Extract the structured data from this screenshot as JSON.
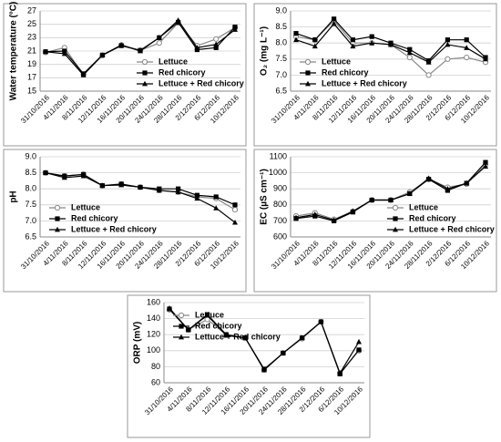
{
  "chart_data": [
    {
      "type": "line",
      "y_label": "Water temperature (°C)",
      "legend": "lower right",
      "categories": [
        "31/10/2016",
        "4/11/2016",
        "8/11/2016",
        "12/11/2016",
        "16/11/2016",
        "20/11/2016",
        "24/11/2016",
        "28/11/2016",
        "2/12/2016",
        "6/12/2016",
        "10/12/2016"
      ],
      "ylim": [
        15,
        27
      ],
      "yticks": [
        15,
        17,
        19,
        21,
        23,
        25,
        27
      ],
      "series": [
        {
          "name": "Lettuce",
          "color": "#888888",
          "marker": "circle",
          "values": [
            20.8,
            21.5,
            17.5,
            20.3,
            21.9,
            21.1,
            22.2,
            25.2,
            21.8,
            22.8,
            24.5
          ]
        },
        {
          "name": "Red chicory",
          "color": "#000000",
          "marker": "square",
          "values": [
            20.9,
            21.0,
            17.6,
            20.4,
            21.8,
            21.1,
            23.0,
            25.3,
            21.2,
            21.5,
            24.6
          ]
        },
        {
          "name": "Lettuce + Red chicory",
          "color": "#000000",
          "marker": "triangle",
          "values": [
            20.9,
            20.6,
            17.4,
            20.4,
            21.9,
            21.0,
            23.0,
            25.6,
            21.5,
            22.0,
            24.2
          ]
        }
      ]
    },
    {
      "type": "line",
      "y_label": "O₂ (mg L⁻¹)",
      "legend": "lower left",
      "categories": [
        "31/10/2016",
        "4/11/2016",
        "8/11/2016",
        "12/11/2016",
        "16/11/2016",
        "20/11/2016",
        "24/11/2016",
        "28/11/2016",
        "2/12/2016",
        "6/12/2016",
        "10/12/2016"
      ],
      "ylim": [
        6.5,
        9.0
      ],
      "yticks": [
        6.5,
        {
          "value": 7,
          "label": "7.0"
        },
        7.5,
        {
          "value": 8,
          "label": "8.0"
        },
        8.5,
        {
          "value": 9,
          "label": "9.0"
        }
      ],
      "series": [
        {
          "name": "Lettuce",
          "color": "#888888",
          "marker": "circle",
          "values": [
            8.2,
            8.1,
            8.7,
            8.0,
            8.0,
            7.95,
            7.55,
            7.0,
            7.5,
            7.55,
            7.4
          ]
        },
        {
          "name": "Red chicory",
          "color": "#000000",
          "marker": "square",
          "values": [
            8.3,
            8.1,
            8.75,
            8.1,
            8.2,
            8.0,
            7.8,
            7.45,
            8.1,
            8.1,
            7.55
          ]
        },
        {
          "name": "Lettuce + Red chicory",
          "color": "#000000",
          "marker": "triangle",
          "values": [
            8.1,
            7.9,
            8.6,
            7.9,
            8.0,
            7.95,
            7.7,
            7.4,
            7.95,
            7.85,
            7.5
          ]
        }
      ]
    },
    {
      "type": "line",
      "y_label": "pH",
      "legend": "lower left",
      "categories": [
        "31/10/2016",
        "4/11/2016",
        "8/11/2016",
        "12/11/2016",
        "16/11/2016",
        "20/11/2016",
        "24/11/2016",
        "28/11/2016",
        "2/12/2016",
        "6/12/2016",
        "10/12/2016"
      ],
      "ylim": [
        6.5,
        9.0
      ],
      "yticks": [
        6.5,
        {
          "value": 7,
          "label": "7.0"
        },
        7.5,
        {
          "value": 8,
          "label": "8.0"
        },
        8.5,
        {
          "value": 9,
          "label": "9.0"
        }
      ],
      "series": [
        {
          "name": "Lettuce",
          "color": "#888888",
          "marker": "circle",
          "values": [
            8.5,
            8.4,
            8.45,
            8.1,
            8.15,
            8.05,
            7.95,
            7.9,
            7.75,
            7.7,
            7.35
          ]
        },
        {
          "name": "Red chicory",
          "color": "#000000",
          "marker": "square",
          "values": [
            8.5,
            8.4,
            8.45,
            8.1,
            8.15,
            8.05,
            8.0,
            8.0,
            7.8,
            7.75,
            7.5
          ]
        },
        {
          "name": "Lettuce + Red chicory",
          "color": "#000000",
          "marker": "triangle",
          "values": [
            8.5,
            8.35,
            8.4,
            8.1,
            8.12,
            8.05,
            7.95,
            7.9,
            7.7,
            7.4,
            6.95
          ]
        }
      ]
    },
    {
      "type": "line",
      "y_label": "EC (µS cm⁻¹)",
      "legend": "lower right",
      "categories": [
        "31/10/2016",
        "4/11/2016",
        "8/11/2016",
        "12/11/2016",
        "16/11/2016",
        "20/11/2016",
        "24/11/2016",
        "28/11/2016",
        "2/12/2016",
        "6/12/2016",
        "10/12/2016"
      ],
      "ylim": [
        600,
        1100
      ],
      "yticks": [
        600,
        700,
        800,
        900,
        1000,
        1100
      ],
      "series": [
        {
          "name": "Lettuce",
          "color": "#888888",
          "marker": "circle",
          "values": [
            730,
            750,
            710,
            760,
            830,
            830,
            880,
            960,
            910,
            930,
            1050
          ]
        },
        {
          "name": "Red chicory",
          "color": "#000000",
          "marker": "square",
          "values": [
            715,
            730,
            700,
            755,
            830,
            830,
            870,
            960,
            890,
            935,
            1065
          ]
        },
        {
          "name": "Lettuce + Red chicory",
          "color": "#000000",
          "marker": "triangle",
          "values": [
            720,
            740,
            705,
            760,
            830,
            830,
            870,
            965,
            900,
            935,
            1040
          ]
        }
      ]
    },
    {
      "type": "line",
      "y_label": "ORP (mV)",
      "legend": "upper left",
      "categories": [
        "31/10/2016",
        "4/11/2016",
        "8/11/2016",
        "12/11/2016",
        "16/11/2016",
        "20/11/2016",
        "24/11/2016",
        "28/11/2016",
        "2/12/2016",
        "6/12/2016",
        "10/12/2016"
      ],
      "ylim": [
        60,
        160
      ],
      "yticks": [
        60,
        80,
        100,
        120,
        140,
        160
      ],
      "series": [
        {
          "name": "Lettuce",
          "color": "#888888",
          "marker": "circle",
          "values": [
            151,
            126,
            139,
            120,
            116,
            76,
            97,
            115,
            136,
            72,
            100
          ]
        },
        {
          "name": "Red chicory",
          "color": "#000000",
          "marker": "square",
          "values": [
            152,
            126,
            145,
            120,
            116,
            77,
            97,
            116,
            136,
            71,
            101
          ]
        },
        {
          "name": "Lettuce + Red chicory",
          "color": "#000000",
          "marker": "triangle",
          "values": [
            153,
            126,
            144,
            119,
            116,
            76,
            97,
            116,
            136,
            72,
            111
          ]
        }
      ]
    }
  ]
}
